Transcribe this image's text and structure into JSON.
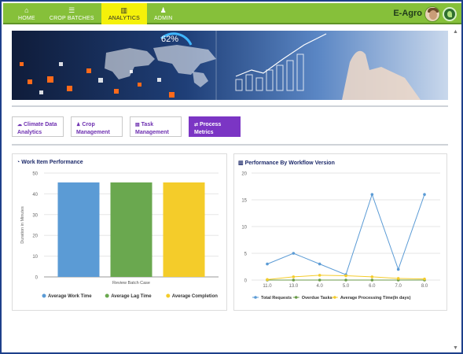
{
  "nav": {
    "items": [
      {
        "label": "HOME",
        "icon": "home-icon",
        "glyph": "⌂"
      },
      {
        "label": "CROP BATCHES",
        "icon": "list-icon",
        "glyph": "☰"
      },
      {
        "label": "ANALYTICS",
        "icon": "bar-chart-icon",
        "glyph": "▥",
        "active": true
      },
      {
        "label": "ADMIN",
        "icon": "user-icon",
        "glyph": "♟"
      }
    ]
  },
  "header": {
    "brand": "E-Agro"
  },
  "banner": {
    "percent_label": "62%"
  },
  "tabs": [
    {
      "label": "Climate Data Analytics",
      "icon": "cloud-icon",
      "glyph": "☁"
    },
    {
      "label": "Crop Management",
      "icon": "person-icon",
      "glyph": "♟"
    },
    {
      "label": "Task Management",
      "icon": "calendar-icon",
      "glyph": "▤"
    },
    {
      "label": "Process Metrics",
      "icon": "shuffle-icon",
      "glyph": "⇄",
      "active": true
    }
  ],
  "panels": {
    "left_title": "Work Item Performance",
    "right_title": "Performance By Workflow Version"
  },
  "colors": {
    "accent_green": "#86c03a",
    "active_nav": "#f5f10a",
    "purple": "#7b35c4",
    "series_blue": "#5b9bd5",
    "series_green": "#6aa84f",
    "series_yellow": "#f4cc2a",
    "series_gray_green": "#6a9a4a"
  },
  "chart_data": [
    {
      "type": "bar",
      "title": "Work Item Performance",
      "categories": [
        "Review Batch Case"
      ],
      "series": [
        {
          "name": "Average Work Time",
          "values": [
            45.5
          ],
          "color": "#5b9bd5"
        },
        {
          "name": "Average Lag Time",
          "values": [
            45.5
          ],
          "color": "#6aa84f"
        },
        {
          "name": "Average Completion",
          "values": [
            45.5
          ],
          "color": "#f4cc2a"
        }
      ],
      "ylabel": "Duration in Minutes",
      "xlabel": "",
      "ylim": [
        0,
        50
      ],
      "yticks": [
        0,
        10,
        20,
        30,
        40,
        50
      ],
      "grid": true,
      "legend": "bottom"
    },
    {
      "type": "line",
      "title": "Performance By Workflow Version",
      "x": [
        "11.0",
        "13.0",
        "4.0",
        "5.0",
        "6.0",
        "7.0",
        "8.0"
      ],
      "series": [
        {
          "name": "Total Requests",
          "values": [
            3,
            5,
            3,
            1,
            16,
            2,
            16
          ],
          "color": "#5b9bd5"
        },
        {
          "name": "Overdue Tasks",
          "values": [
            0,
            0,
            0,
            0,
            0,
            0,
            0
          ],
          "color": "#6a9a4a"
        },
        {
          "name": "Average Processing Time(In days)",
          "values": [
            0.1,
            0.6,
            0.9,
            0.8,
            0.6,
            0.3,
            0.2
          ],
          "color": "#f4cc2a"
        }
      ],
      "ylim": [
        0,
        20
      ],
      "yticks": [
        0,
        5,
        10,
        15,
        20
      ],
      "grid": true,
      "legend": "bottom"
    }
  ]
}
